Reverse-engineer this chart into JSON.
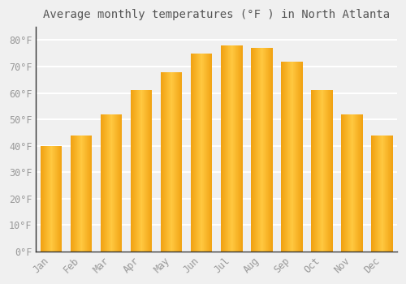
{
  "title": "Average monthly temperatures (°F ) in North Atlanta",
  "months": [
    "Jan",
    "Feb",
    "Mar",
    "Apr",
    "May",
    "Jun",
    "Jul",
    "Aug",
    "Sep",
    "Oct",
    "Nov",
    "Dec"
  ],
  "values": [
    40,
    44,
    52,
    61,
    68,
    75,
    78,
    77,
    72,
    61,
    52,
    44
  ],
  "bar_color_dark": "#F0A010",
  "bar_color_light": "#FFC840",
  "background_color": "#F0F0F0",
  "plot_bg_color": "#F0F0F0",
  "grid_color": "#FFFFFF",
  "yticks": [
    0,
    10,
    20,
    30,
    40,
    50,
    60,
    70,
    80
  ],
  "ylim": [
    0,
    85
  ],
  "title_fontsize": 10,
  "tick_fontsize": 8.5,
  "tick_label_color": "#999999",
  "spine_color": "#333333",
  "figsize": [
    5.0,
    3.5
  ],
  "dpi": 100
}
